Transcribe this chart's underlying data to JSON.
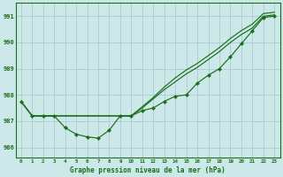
{
  "background_color": "#cce8e8",
  "grid_color": "#aacccc",
  "line_color": "#1a6e1a",
  "marker_color": "#1a6e1a",
  "xlabel": "Graphe pression niveau de la mer (hPa)",
  "ylim": [
    985.6,
    991.5
  ],
  "xlim": [
    -0.5,
    23.5
  ],
  "yticks": [
    986,
    987,
    988,
    989,
    990,
    991
  ],
  "xticks": [
    0,
    1,
    2,
    3,
    4,
    5,
    6,
    7,
    8,
    9,
    10,
    11,
    12,
    13,
    14,
    15,
    16,
    17,
    18,
    19,
    20,
    21,
    22,
    23
  ],
  "series_main": [
    987.75,
    987.2,
    987.2,
    987.2,
    986.75,
    986.5,
    986.4,
    986.35,
    986.65,
    987.2,
    987.2,
    987.4,
    987.5,
    987.75,
    987.95,
    988.0,
    988.45,
    988.75,
    989.0,
    989.45,
    989.95,
    990.45,
    990.95,
    991.0
  ],
  "series_env1": [
    987.75,
    987.2,
    987.2,
    987.2,
    987.2,
    987.2,
    987.2,
    987.2,
    987.2,
    987.2,
    987.2,
    987.5,
    987.85,
    988.2,
    988.5,
    988.8,
    989.05,
    989.35,
    989.65,
    990.0,
    990.3,
    990.55,
    991.0,
    991.05
  ],
  "series_env2": [
    987.75,
    987.2,
    987.2,
    987.2,
    987.2,
    987.2,
    987.2,
    987.2,
    987.2,
    987.2,
    987.2,
    987.55,
    987.9,
    988.3,
    988.65,
    988.95,
    989.2,
    989.5,
    989.8,
    990.15,
    990.45,
    990.7,
    991.1,
    991.15
  ],
  "xlabel_fontsize": 5.5,
  "ylabel_fontsize": 5.5,
  "xtick_fontsize": 4.2,
  "ytick_fontsize": 5.0,
  "linewidth": 0.85,
  "markersize": 2.2
}
